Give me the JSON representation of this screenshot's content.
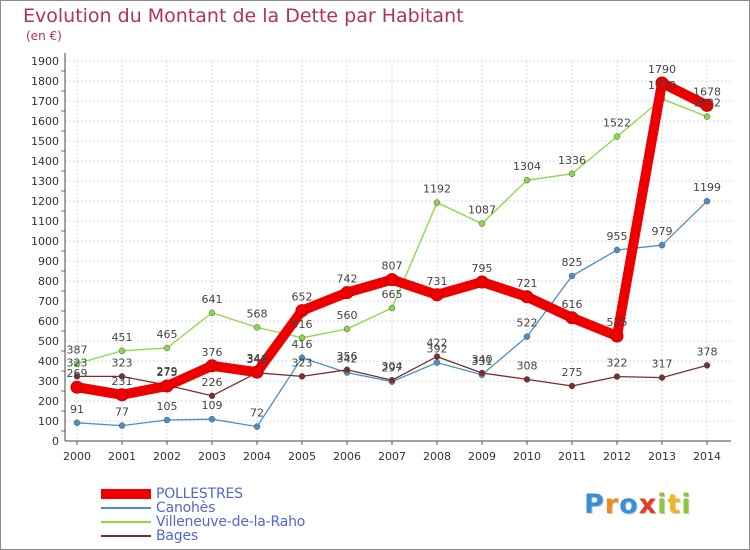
{
  "header": {
    "title": "Evolution du Montant de la Dette par Habitant",
    "subtitle": "(en €)"
  },
  "chart_data": {
    "type": "line",
    "title": "Evolution du Montant de la Dette par Habitant",
    "subtitle": "(en €)",
    "xlabel": "",
    "ylabel": "",
    "ylim": [
      0,
      1900
    ],
    "yticks": [
      0,
      100,
      200,
      300,
      400,
      500,
      600,
      700,
      800,
      900,
      1000,
      1100,
      1200,
      1300,
      1400,
      1500,
      1600,
      1700,
      1800,
      1900
    ],
    "grid": true,
    "legend_position": "bottom-left",
    "categories": [
      "2000",
      "2001",
      "2002",
      "2003",
      "2004",
      "2005",
      "2006",
      "2007",
      "2008",
      "2009",
      "2010",
      "2011",
      "2012",
      "2013",
      "2014"
    ],
    "series": [
      {
        "name": "Villeneuve-de-la-Raho",
        "color": "#88d844",
        "values": [
          387,
          451,
          465,
          641,
          568,
          516,
          560,
          665,
          1192,
          1087,
          1304,
          1336,
          1522,
          1710,
          1622
        ],
        "labels": [
          "387",
          "451",
          "465",
          "641",
          "568",
          "516",
          "560",
          "665",
          "1192",
          "1087",
          "1304",
          "1336",
          "1522",
          "1710",
          "1622"
        ]
      },
      {
        "name": "Canohès",
        "color": "#4a90c8",
        "values": [
          91,
          77,
          105,
          109,
          72,
          416,
          342,
          297,
          392,
          331,
          522,
          825,
          955,
          979,
          1199
        ],
        "labels": [
          "91",
          "77",
          "105",
          "109",
          "72",
          "416",
          "342",
          "297",
          "392",
          "331",
          "522",
          "825",
          "955",
          "979",
          "1199"
        ]
      },
      {
        "name": "Bages",
        "color": "#7a2e2e",
        "values": [
          323,
          323,
          279,
          226,
          341,
          323,
          356,
          304,
          422,
          340,
          308,
          275,
          322,
          317,
          378
        ],
        "labels": [
          "323",
          "323",
          "279",
          "226",
          "341",
          "323",
          "356",
          "304",
          "422",
          "340",
          "308",
          "275",
          "322",
          "317",
          "378"
        ]
      },
      {
        "name": "POLLESTRES",
        "color": "#ee0000",
        "values": [
          269,
          231,
          275,
          376,
          344,
          652,
          742,
          807,
          731,
          795,
          721,
          616,
          525,
          1790,
          1678
        ],
        "labels": [
          "269",
          "231",
          "275",
          "376",
          "344",
          "652",
          "742",
          "807",
          "731",
          "795",
          "721",
          "616",
          "525",
          "1790",
          "1678"
        ]
      }
    ],
    "legend": [
      "POLLESTRES",
      "Canohès",
      "Villeneuve-de-la-Raho",
      "Bages"
    ]
  },
  "legend": {
    "items": [
      {
        "label": "POLLESTRES",
        "color": "#ee0000"
      },
      {
        "label": "Canohès",
        "color": "#4a90c8"
      },
      {
        "label": "Villeneuve-de-la-Raho",
        "color": "#88d844"
      },
      {
        "label": "Bages",
        "color": "#7a2e2e"
      }
    ]
  },
  "logo": {
    "letters": [
      "P",
      "r",
      "o",
      "x",
      "i",
      "t",
      "i"
    ],
    "colors": [
      "#3a8fd8",
      "#f08a1c",
      "#3a8fd8",
      "#e23b2a",
      "#8cc63f",
      "#f0b81c",
      "#8cc63f"
    ]
  }
}
